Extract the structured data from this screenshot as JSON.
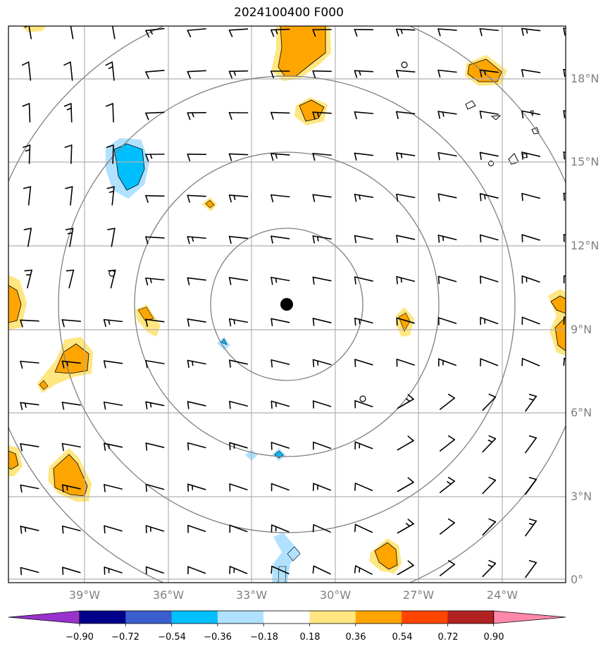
{
  "title": "2024100400 F000",
  "colors": {
    "grid": "#b0b0b0",
    "rings": "#808080",
    "frame": "#000000",
    "center_marker": "#000000",
    "barb": "#000000"
  },
  "axes": {
    "lon_labels": [
      "39°W",
      "36°W",
      "33°W",
      "30°W",
      "27°W",
      "24°W"
    ],
    "lat_labels": [
      "18°N",
      "15°N",
      "12°N",
      "9°N",
      "6°N",
      "3°N",
      "0°"
    ]
  },
  "colorbar": {
    "tick_labels": [
      "−0.90",
      "−0.72",
      "−0.54",
      "−0.36",
      "−0.18",
      "0.18",
      "0.36",
      "0.54",
      "0.72",
      "0.90"
    ],
    "colors": [
      "#9932cc",
      "#00008b",
      "#3a5fcd",
      "#00bfff",
      "#b0e2ff",
      "#ffffff",
      "#ffe680",
      "#ffa500",
      "#ff4500",
      "#b22222",
      "#ff88aa"
    ]
  },
  "shaded_features": [
    {
      "icon": "positive-anomaly-blob",
      "level": 0.54
    },
    {
      "icon": "negative-anomaly-blob",
      "level": -0.54
    }
  ]
}
